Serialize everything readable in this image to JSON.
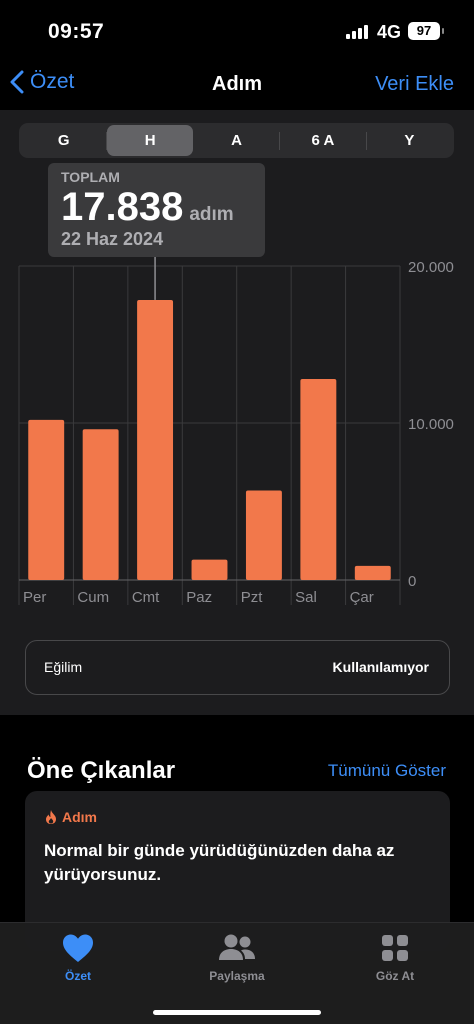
{
  "status": {
    "time": "09:57",
    "network": "4G",
    "battery": "97"
  },
  "nav": {
    "back_label": "Özet",
    "title": "Adım",
    "action_label": "Veri Ekle"
  },
  "segments": [
    "G",
    "H",
    "A",
    "6 A",
    "Y"
  ],
  "selected_segment": "H",
  "tooltip": {
    "label": "TOPLAM",
    "value": "17.838",
    "unit": "adım",
    "date": "22 Haz 2024"
  },
  "chart_data": {
    "type": "bar",
    "categories": [
      "Per",
      "Cum",
      "Cmt",
      "Paz",
      "Pzt",
      "Sal",
      "Çar"
    ],
    "values": [
      10200,
      9600,
      17838,
      1300,
      5700,
      12800,
      900
    ],
    "ylim": [
      0,
      20000
    ],
    "y_ticks": [
      0,
      10000,
      20000
    ],
    "y_tick_labels": [
      "0",
      "10.000",
      "20.000"
    ],
    "bar_color": "#f2784b",
    "selected_index": 2
  },
  "trend": {
    "label": "Eğilim",
    "value": "Kullanılamıyor"
  },
  "highlights": {
    "title": "Öne Çıkanlar",
    "show_all": "Tümünü Göster",
    "card_tag": "Adım",
    "card_text": "Normal bir günde yürüdüğünüzden daha az yürüyorsunuz."
  },
  "tabs": [
    {
      "label": "Özet",
      "icon": "heart-icon",
      "active": true
    },
    {
      "label": "Paylaşma",
      "icon": "people-icon",
      "active": false
    },
    {
      "label": "Göz At",
      "icon": "grid-icon",
      "active": false
    }
  ],
  "colors": {
    "accent": "#3d8ef7",
    "bar": "#f2784b",
    "background": "#1c1c1e"
  }
}
